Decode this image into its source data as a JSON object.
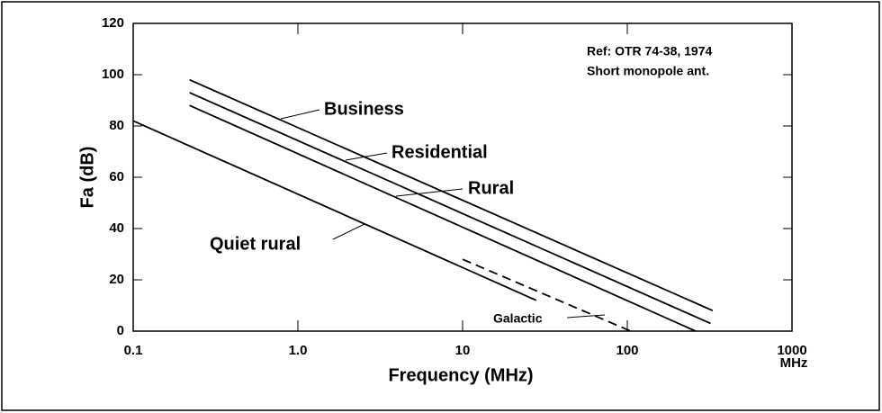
{
  "chart_data": {
    "type": "line",
    "xlabel": "Frequency (MHz)",
    "ylabel": "Fa (dB)",
    "x_unit": "MHz",
    "annotations": [
      "Ref: OTR 74-38, 1974",
      "Short monopole ant."
    ],
    "xscale": "log",
    "xlim": [
      0.1,
      1000
    ],
    "xticks": [
      0.1,
      {
        "value": 1,
        "label": "1.0"
      },
      10,
      100,
      1000
    ],
    "ylim": [
      0,
      120
    ],
    "yticks": [
      0,
      20,
      40,
      60,
      80,
      100,
      120
    ],
    "series": [
      {
        "name": "Business",
        "color": "#000000",
        "style": "solid",
        "x": [
          0.22,
          330
        ],
        "values": [
          98,
          8
        ]
      },
      {
        "name": "Residential",
        "color": "#000000",
        "style": "solid",
        "x": [
          0.22,
          320
        ],
        "values": [
          93,
          3
        ]
      },
      {
        "name": "Rural",
        "color": "#000000",
        "style": "solid",
        "x": [
          0.22,
          260
        ],
        "values": [
          88,
          0
        ]
      },
      {
        "name": "Quiet rural",
        "color": "#000000",
        "style": "solid",
        "x": [
          0.1,
          28
        ],
        "values": [
          82,
          12
        ]
      },
      {
        "name": "Galactic",
        "color": "#000000",
        "style": "dashed",
        "x": [
          10,
          105
        ],
        "values": [
          28,
          0
        ]
      }
    ]
  }
}
